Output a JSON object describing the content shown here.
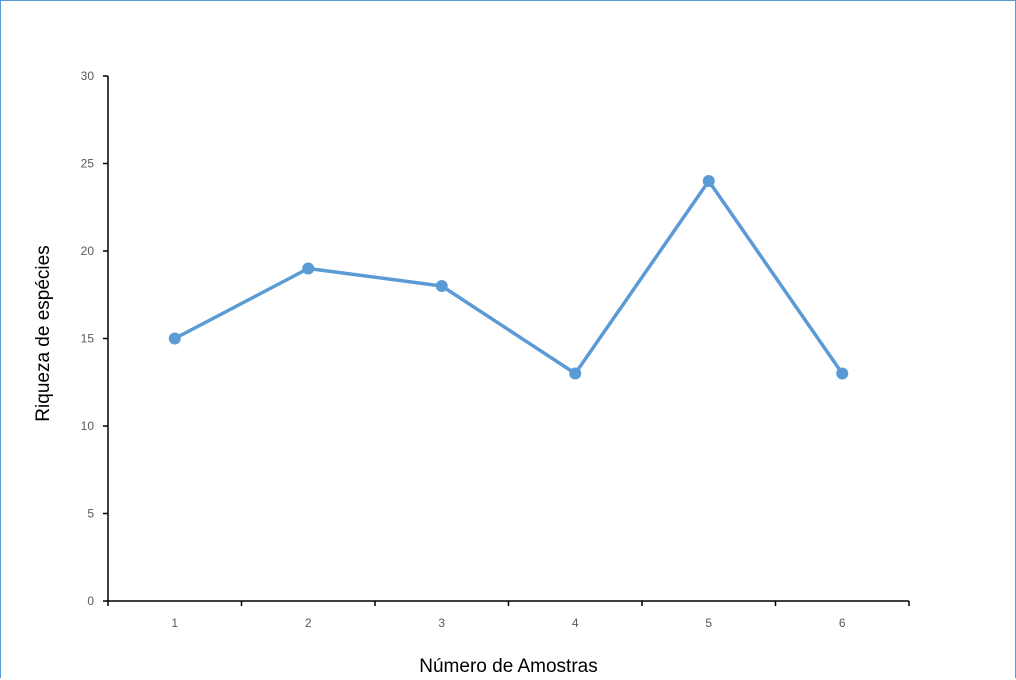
{
  "chart_data": {
    "type": "line",
    "title": "",
    "xlabel": "Número de Amostras",
    "ylabel": "Riqueza de espécies",
    "categories": [
      "1",
      "2",
      "3",
      "4",
      "5",
      "6"
    ],
    "series": [
      {
        "values": [
          15,
          19,
          18,
          13,
          24,
          13
        ],
        "color": "#5b9bd5"
      }
    ],
    "ylim": [
      0,
      30
    ],
    "yticks": [
      0,
      5,
      10,
      15,
      20,
      25,
      30
    ],
    "grid": false,
    "legend": "none"
  }
}
